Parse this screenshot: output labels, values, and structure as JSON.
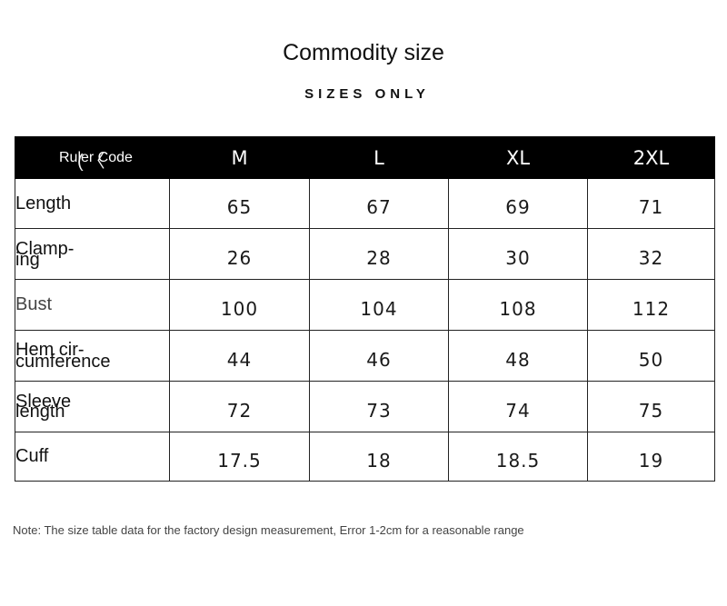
{
  "title": "Commodity size",
  "subtitle": "SIZES ONLY",
  "table": {
    "corner_label": "Ruler Code",
    "columns": [
      "M",
      "L",
      "XL",
      "2XL"
    ],
    "rows": [
      {
        "label": "Length",
        "values": [
          "65",
          "67",
          "69",
          "71"
        ]
      },
      {
        "label": "Clamp-\ning",
        "values": [
          "26",
          "28",
          "30",
          "32"
        ]
      },
      {
        "label": "Bust",
        "values": [
          "100",
          "104",
          "108",
          "112"
        ]
      },
      {
        "label": "Hem cir-\ncumference",
        "values": [
          "44",
          "46",
          "48",
          "50"
        ]
      },
      {
        "label": "Sleeve\nlength",
        "values": [
          "72",
          "73",
          "74",
          "75"
        ]
      },
      {
        "label": "Cuff",
        "values": [
          "17.5",
          "18",
          "18.5",
          "19"
        ]
      }
    ]
  },
  "note": "Note: The size table data for the factory design measurement, Error 1-2cm for a reasonable range"
}
